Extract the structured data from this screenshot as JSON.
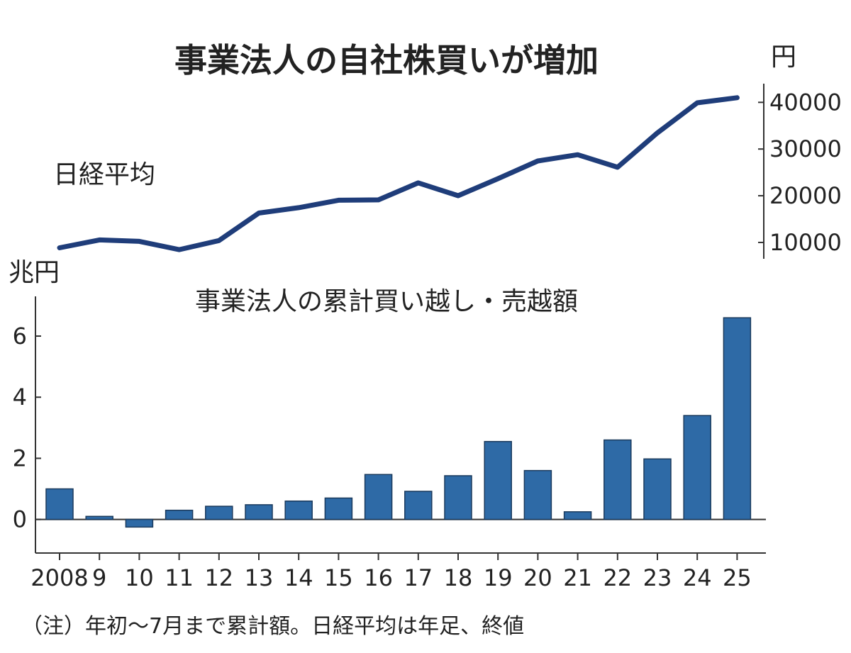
{
  "title": "事業法人の自社株買いが増加",
  "note": "（注）年初～7月まで累計額。日経平均は年足、終値",
  "colors": {
    "bar": "#2e6aa6",
    "line": "#1f3d7a",
    "axis": "#333333",
    "text": "#222222"
  },
  "chart_data": [
    {
      "type": "line",
      "series_label": "日経平均",
      "unit": "円",
      "x": [
        "2008",
        "9",
        "10",
        "11",
        "12",
        "13",
        "14",
        "15",
        "16",
        "17",
        "18",
        "19",
        "20",
        "21",
        "22",
        "23",
        "24",
        "25"
      ],
      "series": [
        {
          "name": "日経平均",
          "values": [
            8860,
            10546,
            10229,
            8455,
            10395,
            16291,
            17451,
            19034,
            19114,
            22765,
            20015,
            23657,
            27444,
            28792,
            26095,
            33464,
            39895,
            41000
          ]
        }
      ],
      "y_ticks": [
        10000,
        20000,
        30000,
        40000
      ],
      "y_tick_labels": [
        "10000",
        "20000",
        "30000",
        "40000"
      ],
      "ylim": [
        6500,
        44000
      ],
      "y_axis_side": "right"
    },
    {
      "type": "bar",
      "title": "事業法人の累計買い越し・売越額",
      "unit": "兆円",
      "categories": [
        "2008",
        "9",
        "10",
        "11",
        "12",
        "13",
        "14",
        "15",
        "16",
        "17",
        "18",
        "19",
        "20",
        "21",
        "22",
        "23",
        "24",
        "25"
      ],
      "values": [
        1.0,
        0.1,
        -0.25,
        0.3,
        0.43,
        0.48,
        0.6,
        0.7,
        1.47,
        0.92,
        1.43,
        2.55,
        1.6,
        0.25,
        2.6,
        1.98,
        3.4,
        6.6
      ],
      "y_ticks": [
        0,
        2,
        4,
        6
      ],
      "y_tick_labels": [
        "0",
        "2",
        "4",
        "6"
      ],
      "ylim": [
        -1.1,
        7.3
      ]
    }
  ]
}
